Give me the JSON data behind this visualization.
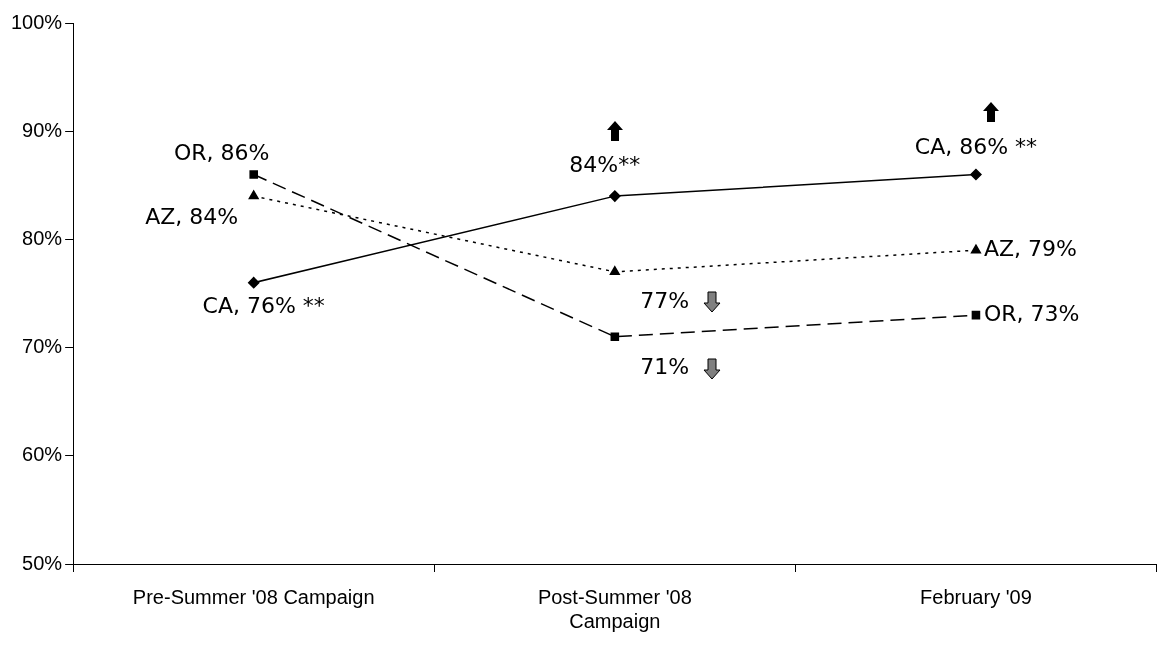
{
  "chart_data": {
    "type": "line",
    "categories": [
      "Pre-Summer '08 Campaign",
      "Post-Summer '08 Campaign",
      "February '09"
    ],
    "series": [
      {
        "color": "#000000",
        "marker": "diamond",
        "line_style": "solid",
        "values": [
          76,
          84,
          86
        ],
        "value_labels": [
          "CA, 76% **",
          "84%**",
          "CA, 86% **"
        ]
      },
      {
        "color": "#000000",
        "marker": "triangle",
        "line_style": "dotted",
        "values": [
          84,
          77,
          79
        ],
        "value_labels": [
          "AZ, 84%",
          "77%",
          "AZ, 79%"
        ]
      },
      {
        "color": "#000000",
        "marker": "square",
        "line_style": "dashed",
        "values": [
          86,
          71,
          73
        ],
        "value_labels": [
          "OR, 86%",
          "71%",
          "OR, 73%"
        ]
      }
    ],
    "ylim": [
      50,
      100
    ],
    "yticks": [
      {
        "value": 50,
        "label": "50%"
      },
      {
        "value": 60,
        "label": "60%"
      },
      {
        "value": 70,
        "label": "70%"
      },
      {
        "value": 80,
        "label": "80%"
      },
      {
        "value": 90,
        "label": "90%"
      },
      {
        "value": 100,
        "label": "100%"
      }
    ],
    "grid": false,
    "legend": false
  }
}
